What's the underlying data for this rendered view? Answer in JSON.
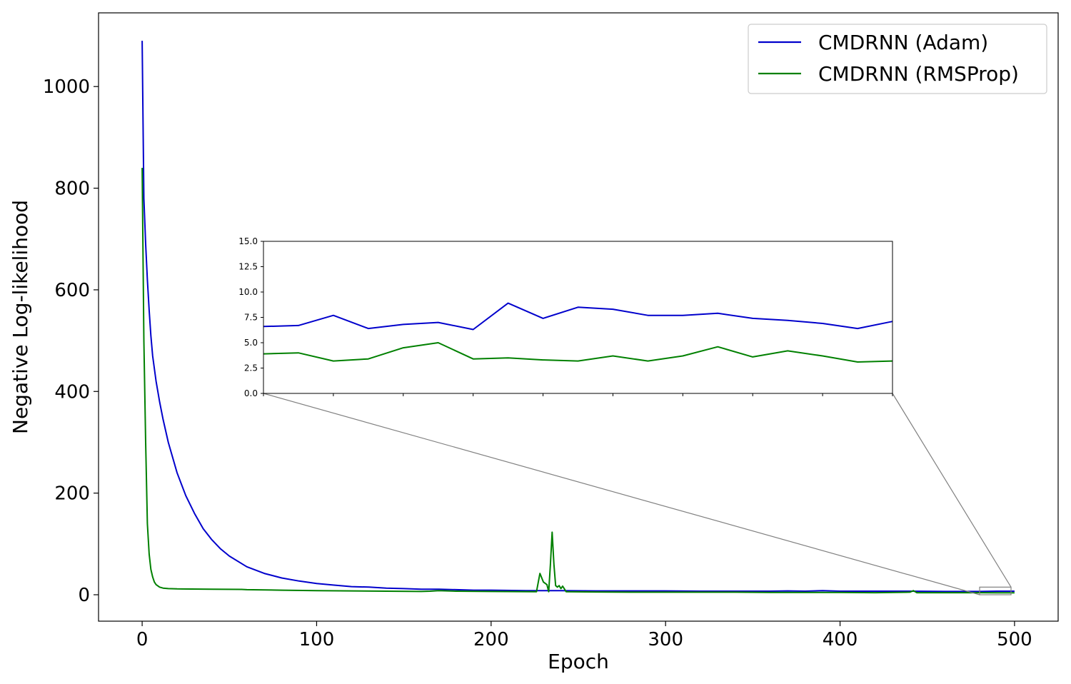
{
  "chart_data": {
    "type": "line",
    "xlabel": "Epoch",
    "ylabel": "Negative Log-likelihood",
    "xlim": [
      -25,
      525
    ],
    "ylim": [
      -52,
      1145
    ],
    "x_ticks": [
      0,
      100,
      200,
      300,
      400,
      500
    ],
    "y_ticks": [
      0,
      200,
      400,
      600,
      800,
      1000
    ],
    "legend": {
      "position": "top-right"
    },
    "grid": false,
    "series": [
      {
        "name": "CMDRNN (Adam)",
        "color": "#0000cc",
        "points": [
          [
            0,
            1090
          ],
          [
            1,
            780
          ],
          [
            2,
            690
          ],
          [
            3,
            620
          ],
          [
            4,
            560
          ],
          [
            5,
            510
          ],
          [
            6,
            470
          ],
          [
            8,
            420
          ],
          [
            10,
            380
          ],
          [
            12,
            345
          ],
          [
            15,
            300
          ],
          [
            20,
            240
          ],
          [
            25,
            195
          ],
          [
            30,
            160
          ],
          [
            35,
            130
          ],
          [
            40,
            108
          ],
          [
            45,
            90
          ],
          [
            50,
            76
          ],
          [
            60,
            55
          ],
          [
            70,
            42
          ],
          [
            80,
            33
          ],
          [
            90,
            27
          ],
          [
            100,
            22
          ],
          [
            110,
            19
          ],
          [
            120,
            16
          ],
          [
            130,
            15
          ],
          [
            140,
            13
          ],
          [
            150,
            12
          ],
          [
            160,
            11
          ],
          [
            170,
            11
          ],
          [
            180,
            10
          ],
          [
            190,
            9
          ],
          [
            200,
            9
          ],
          [
            220,
            8
          ],
          [
            240,
            8
          ],
          [
            260,
            7.5
          ],
          [
            280,
            7.5
          ],
          [
            300,
            7.5
          ],
          [
            320,
            7
          ],
          [
            340,
            7
          ],
          [
            360,
            7
          ],
          [
            370,
            7.5
          ],
          [
            380,
            7
          ],
          [
            390,
            8
          ],
          [
            400,
            7
          ],
          [
            420,
            7
          ],
          [
            440,
            7
          ],
          [
            460,
            6.5
          ],
          [
            480,
            6.5
          ],
          [
            490,
            7
          ],
          [
            500,
            7
          ]
        ]
      },
      {
        "name": "CMDRNN (RMSProp)",
        "color": "#008000",
        "points": [
          [
            0,
            840
          ],
          [
            1,
            500
          ],
          [
            2,
            300
          ],
          [
            3,
            140
          ],
          [
            4,
            80
          ],
          [
            5,
            50
          ],
          [
            6,
            35
          ],
          [
            7,
            25
          ],
          [
            8,
            20
          ],
          [
            10,
            15
          ],
          [
            12,
            13
          ],
          [
            15,
            12
          ],
          [
            20,
            11.5
          ],
          [
            40,
            11
          ],
          [
            57,
            10.5
          ],
          [
            60,
            10
          ],
          [
            80,
            9
          ],
          [
            100,
            8
          ],
          [
            120,
            7.5
          ],
          [
            140,
            7
          ],
          [
            160,
            6.5
          ],
          [
            165,
            7
          ],
          [
            170,
            8
          ],
          [
            180,
            7
          ],
          [
            200,
            6.5
          ],
          [
            226,
            6
          ],
          [
            228,
            42
          ],
          [
            230,
            25
          ],
          [
            232,
            20
          ],
          [
            233,
            6
          ],
          [
            234,
            60
          ],
          [
            235,
            123
          ],
          [
            236,
            60
          ],
          [
            237,
            18
          ],
          [
            238,
            15
          ],
          [
            239,
            18
          ],
          [
            240,
            12
          ],
          [
            241,
            17
          ],
          [
            243,
            6
          ],
          [
            260,
            5.5
          ],
          [
            280,
            5
          ],
          [
            300,
            5
          ],
          [
            320,
            5
          ],
          [
            340,
            5
          ],
          [
            360,
            4.5
          ],
          [
            380,
            4.5
          ],
          [
            400,
            4.5
          ],
          [
            420,
            4
          ],
          [
            440,
            5
          ],
          [
            442,
            8
          ],
          [
            444,
            4
          ],
          [
            460,
            4
          ],
          [
            480,
            4
          ],
          [
            490,
            3.8
          ],
          [
            500,
            3.8
          ]
        ]
      }
    ],
    "inset": {
      "xlim": [
        480,
        498
      ],
      "ylim": [
        0,
        15
      ],
      "y_ticks": [
        "0.0",
        "2.5",
        "5.0",
        "7.5",
        "10.0",
        "12.5",
        "15.0"
      ],
      "x_tick_count": 10,
      "x": [
        480,
        481,
        482,
        483,
        484,
        485,
        486,
        487,
        488,
        489,
        490,
        491,
        492,
        493,
        494,
        495,
        496,
        497,
        498
      ],
      "series": [
        {
          "name": "CMDRNN (Adam)",
          "values": [
            6.6,
            6.7,
            7.7,
            6.4,
            6.8,
            7.0,
            6.3,
            8.9,
            7.4,
            8.5,
            8.3,
            7.7,
            7.7,
            7.9,
            7.4,
            7.2,
            6.9,
            6.4,
            7.1
          ]
        },
        {
          "name": "CMDRNN (RMSProp)",
          "values": [
            3.9,
            4.0,
            3.2,
            3.4,
            4.5,
            5.0,
            3.4,
            3.5,
            3.3,
            3.2,
            3.7,
            3.2,
            3.7,
            4.6,
            3.6,
            4.2,
            3.7,
            3.1,
            3.2
          ]
        }
      ]
    }
  }
}
